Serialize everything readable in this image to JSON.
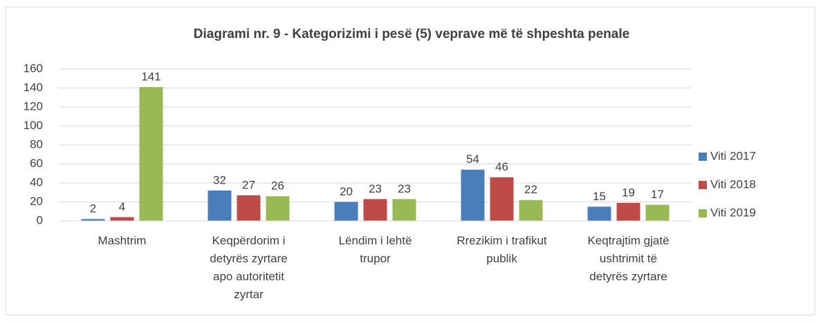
{
  "chart_data": {
    "type": "bar",
    "title": "Diagrami nr. 9 - Kategorizimi i pesë (5) veprave më të shpeshta penale",
    "categories": [
      "Mashtrim",
      "Keqpërdorim i\ndetyrës zyrtare\napo autoritetit\nzyrtar",
      "Lëndim i lehtë\ntrupor",
      "Rrezikim i trafikut\npublik",
      "Keqtrajtim gjatë\nushtrimit të\ndetyrës zyrtare"
    ],
    "series": [
      {
        "name": "Viti 2017",
        "color": "#4a7ebb",
        "values": [
          2,
          32,
          20,
          54,
          15
        ]
      },
      {
        "name": "Viti 2018",
        "color": "#be4b48",
        "values": [
          4,
          27,
          23,
          46,
          19
        ]
      },
      {
        "name": "Viti 2019",
        "color": "#98b954",
        "values": [
          141,
          26,
          23,
          22,
          17
        ]
      }
    ],
    "ylim": [
      0,
      160
    ],
    "yticks": [
      0,
      20,
      40,
      60,
      80,
      100,
      120,
      140,
      160
    ],
    "grid": true,
    "legend": "right"
  }
}
